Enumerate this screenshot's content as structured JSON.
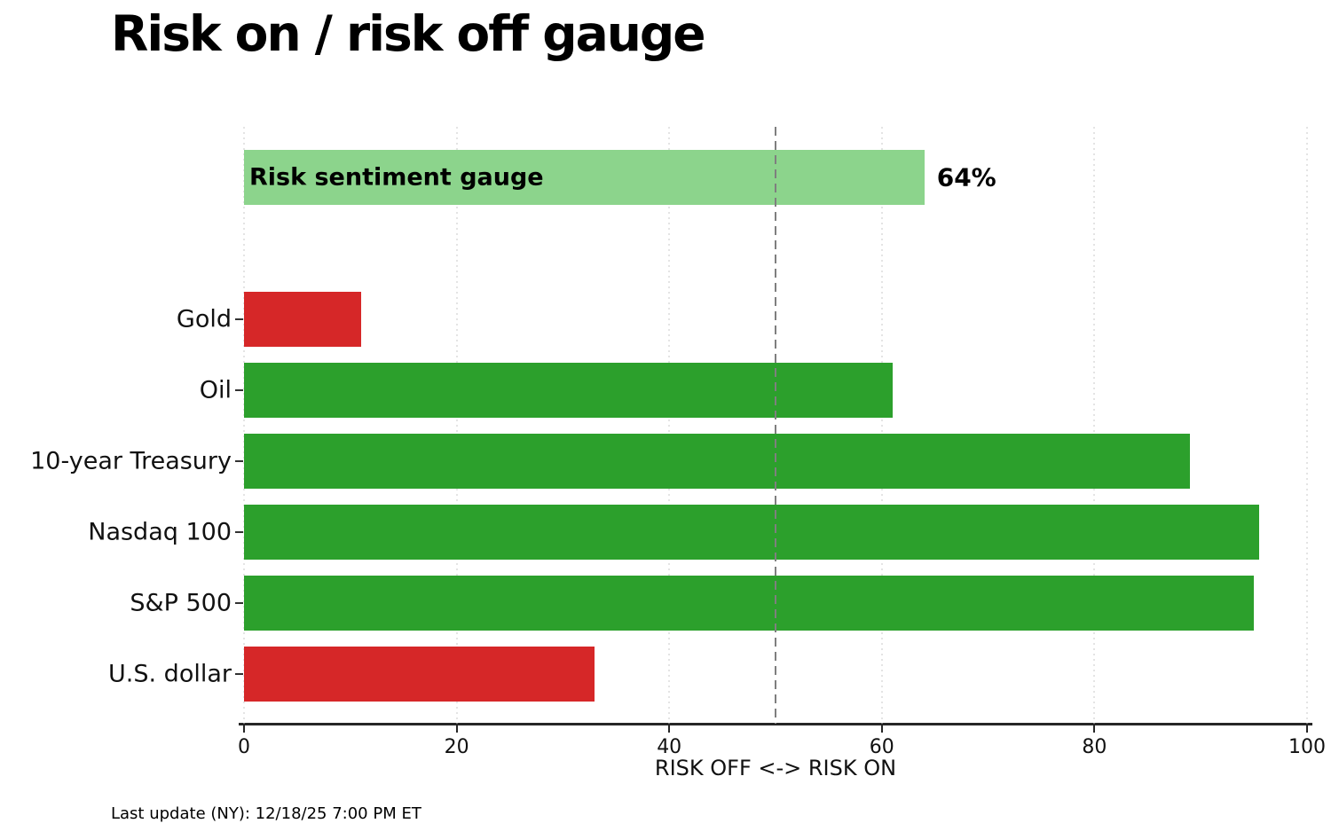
{
  "title": "Risk on / risk off gauge",
  "footer": "Last update (NY): 12/18/25 7:00 PM ET",
  "colors": {
    "risk_on_green": "#2ca02c",
    "risk_off_red": "#d62728",
    "gauge_light_green": "#8cd48c",
    "grid": "#c9c9c9",
    "midline": "#7f7f7f",
    "axis": "#262626"
  },
  "chart_data": {
    "type": "bar",
    "orientation": "horizontal",
    "title": "Risk on / risk off gauge",
    "xlabel": "RISK OFF <-> RISK ON",
    "xlim": [
      0,
      100
    ],
    "xticks": [
      0,
      20,
      40,
      60,
      80,
      100
    ],
    "grid": "dotted vertical at each xtick",
    "midline": 50,
    "gauge": {
      "label": "Risk sentiment gauge",
      "value": 64,
      "value_label": "64%",
      "color": "#8cd48c"
    },
    "categories": [
      "Gold",
      "Oil",
      "10-year Treasury",
      "Nasdaq 100",
      "S&P 500",
      "U.S. dollar"
    ],
    "values": [
      11,
      61,
      89,
      95.5,
      95,
      33
    ],
    "bar_colors": [
      "#d62728",
      "#2ca02c",
      "#2ca02c",
      "#2ca02c",
      "#2ca02c",
      "#d62728"
    ]
  }
}
